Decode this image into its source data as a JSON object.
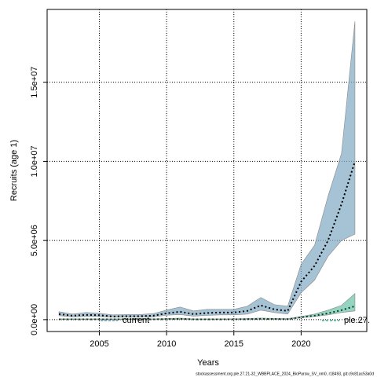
{
  "chart_data": {
    "type": "band-line",
    "x_label": "Years",
    "y_label": "Recruits (age 1)",
    "footnote": "stockassessment.org ple.27.21-32_WBBPLACE_2024_BioParsw_SV_nm0, r18493, git:c9c81ac53a0d",
    "x": [
      2002,
      2003,
      2004,
      2005,
      2006,
      2007,
      2008,
      2009,
      2010,
      2011,
      2012,
      2013,
      2014,
      2015,
      2016,
      2017,
      2018,
      2019,
      2020,
      2021,
      2022,
      2023,
      2024
    ],
    "xlim": [
      2001.12,
      2024.88
    ],
    "xticks": [
      2005,
      2010,
      2015,
      2020
    ],
    "ylim": [
      -750000,
      19600000
    ],
    "yticks": [
      {
        "value": 0,
        "label": "0.0e+00"
      },
      {
        "value": 5000000,
        "label": "5.0e+06"
      },
      {
        "value": 10000000,
        "label": "1.0e+07"
      },
      {
        "value": 15000000,
        "label": "1.5e+07"
      }
    ],
    "grid": true,
    "series": [
      {
        "name": "current",
        "color": "#000000",
        "band_color": "#7fa9c3",
        "values": [
          350000,
          250000,
          300000,
          280000,
          200000,
          220000,
          220000,
          250000,
          400000,
          500000,
          350000,
          420000,
          450000,
          450000,
          550000,
          900000,
          650000,
          550000,
          2400000,
          3400000,
          5000000,
          7300000,
          10000000
        ],
        "upper": [
          500000,
          350000,
          450000,
          400000,
          300000,
          320000,
          320000,
          380000,
          600000,
          800000,
          550000,
          650000,
          650000,
          650000,
          850000,
          1400000,
          950000,
          850000,
          3500000,
          4700000,
          7800000,
          10500000,
          18850000
        ],
        "lower": [
          250000,
          180000,
          200000,
          200000,
          150000,
          150000,
          150000,
          170000,
          280000,
          320000,
          220000,
          270000,
          300000,
          300000,
          350000,
          600000,
          450000,
          350000,
          1700000,
          2500000,
          4000000,
          5000000,
          5400000
        ]
      },
      {
        "name": "ple.27.",
        "color": "#0b3d20",
        "band_color": "#66c2a5",
        "values": [
          20000,
          20000,
          20000,
          20000,
          20000,
          20000,
          20000,
          20000,
          30000,
          50000,
          20000,
          20000,
          20000,
          20000,
          30000,
          50000,
          40000,
          30000,
          150000,
          250000,
          400000,
          600000,
          850000
        ],
        "upper": [
          50000,
          50000,
          50000,
          50000,
          50000,
          50000,
          50000,
          50000,
          70000,
          90000,
          50000,
          50000,
          50000,
          50000,
          70000,
          100000,
          80000,
          60000,
          200000,
          350000,
          600000,
          900000,
          1650000
        ],
        "lower": [
          10000,
          10000,
          10000,
          10000,
          10000,
          10000,
          10000,
          10000,
          15000,
          20000,
          10000,
          10000,
          10000,
          10000,
          15000,
          25000,
          20000,
          15000,
          120000,
          200000,
          300000,
          450000,
          550000
        ]
      }
    ]
  }
}
